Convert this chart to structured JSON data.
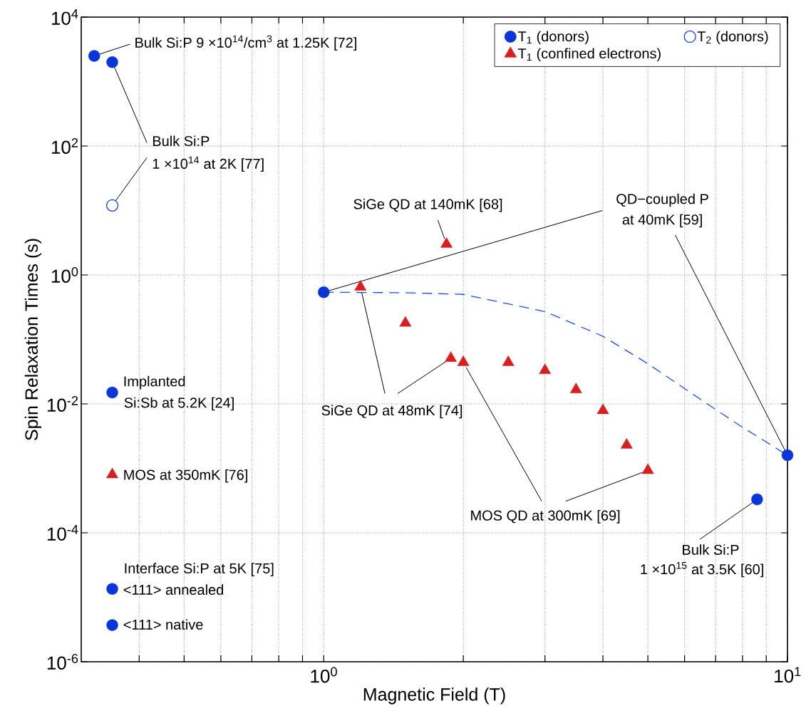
{
  "chart_data": {
    "type": "scatter",
    "xlabel": "Magnetic Field (T)",
    "ylabel": "Spin Relaxation Times (s)",
    "log": "xy",
    "grid": true,
    "legend": "top right",
    "xlim": [
      0.3,
      10
    ],
    "ylim": [
      1e-06,
      10000
    ],
    "xticks": [
      {
        "value": 0.4,
        "label": null
      },
      {
        "value": 0.5,
        "label": null
      },
      {
        "value": 0.6,
        "label": null
      },
      {
        "value": 0.7,
        "label": null
      },
      {
        "value": 0.8,
        "label": null
      },
      {
        "value": 0.9,
        "label": null
      },
      {
        "value": 1,
        "label": "10$^{0}$"
      },
      {
        "value": 2,
        "label": null
      },
      {
        "value": 3,
        "label": null
      },
      {
        "value": 4,
        "label": null
      },
      {
        "value": 5,
        "label": null
      },
      {
        "value": 6,
        "label": null
      },
      {
        "value": 7,
        "label": null
      },
      {
        "value": 8,
        "label": null
      },
      {
        "value": 9,
        "label": null
      },
      {
        "value": 10,
        "label": "10$^{1}$"
      }
    ],
    "yticks": [
      {
        "value": 1e-06,
        "label": "10$^{-6}$"
      },
      {
        "value": 0.0001,
        "label": "10$^{-4}$"
      },
      {
        "value": 0.01,
        "label": "10$^{-2}$"
      },
      {
        "value": 1,
        "label": "10$^{0}$"
      },
      {
        "value": 100,
        "label": "10$^{2}$"
      },
      {
        "value": 10000,
        "label": "10$^{4}$"
      }
    ],
    "series": [
      {
        "name": "T$_{1}$ (donors)",
        "color": "#0a35d9",
        "marker": "circle",
        "x": [
          0.32,
          0.35,
          0.35,
          0.35,
          0.35,
          1,
          10,
          8.6
        ],
        "values": [
          2500,
          2000,
          0.015,
          1.35e-05,
          3.7e-06,
          0.54,
          0.0016,
          0.00033
        ]
      },
      {
        "name": "T$_{2}$ (donors)",
        "color": "#0a35d9",
        "marker": "circle",
        "x": [
          0.35
        ],
        "values": [
          12
        ]
      },
      {
        "name": "T$_{1}$ (confined electrons)",
        "color": "#d62020",
        "marker": "triangle",
        "x": [
          0.35,
          1.2,
          1.84,
          1.5,
          1.88,
          2.0,
          2.5,
          3.0,
          3.5,
          4.0,
          4.5,
          5.0
        ],
        "values": [
          0.0008,
          0.65,
          3.0,
          0.18,
          0.051,
          0.044,
          0.044,
          0.033,
          0.0166,
          0.0079,
          0.0023,
          0.00093
        ]
      },
      {
        "type": "line",
        "color": "#1f4fe0",
        "line_style": "dashed",
        "marker": "none",
        "x": [
          1,
          1.5,
          2,
          3,
          4,
          5,
          6.5,
          7.9,
          10
        ],
        "values": [
          0.54,
          0.53,
          0.5,
          0.27,
          0.112,
          0.042,
          0.0117,
          0.0046,
          0.0016
        ]
      }
    ],
    "annotations": [
      {
        "text": "Bulk Si:P 9 ×10$^{14}$/cm$^{3}$ at 1.25K [72]",
        "x": 0.32,
        "y": 2500
      },
      {
        "text": "Bulk Si:P",
        "x": 0.35,
        "y": 2000
      },
      {
        "text": "1 ×10$^{14}$ at 2K [77]",
        "x": 0.35,
        "y": 12
      },
      {
        "text": "Implanted",
        "x": 0.35,
        "y": 0.015
      },
      "Si:Sb at 5.2K [24]",
      {
        "text": "MOS at 350mK [76]",
        "x": 0.35,
        "y": 0.0008
      },
      "Interface Si:P at 5K [75]",
      {
        "text": "<111> annealed",
        "x": 0.35,
        "y": 1.35e-05
      },
      {
        "text": "<111> native",
        "x": 0.35,
        "y": 3.7e-06
      },
      {
        "text": "SiGe QD at 140mK [68]",
        "x": 1.84,
        "y": 3.0
      },
      {
        "text": "QD−coupled P",
        "x": 1,
        "y": 0.54
      },
      {
        "text": "at 40mK [59]",
        "x": 10,
        "y": 0.0016
      },
      {
        "text": "SiGe QD at 48mK [74]",
        "x": 1.2,
        "y": 0.65
      },
      {
        "text": "MOS QD at 300mK [69]",
        "x": 2.0,
        "y": 0.044
      },
      {
        "text": "Bulk Si:P",
        "x": 8.6,
        "y": 0.00033
      },
      "1 ×10$^{15}$ at 3.5K [60]"
    ]
  }
}
